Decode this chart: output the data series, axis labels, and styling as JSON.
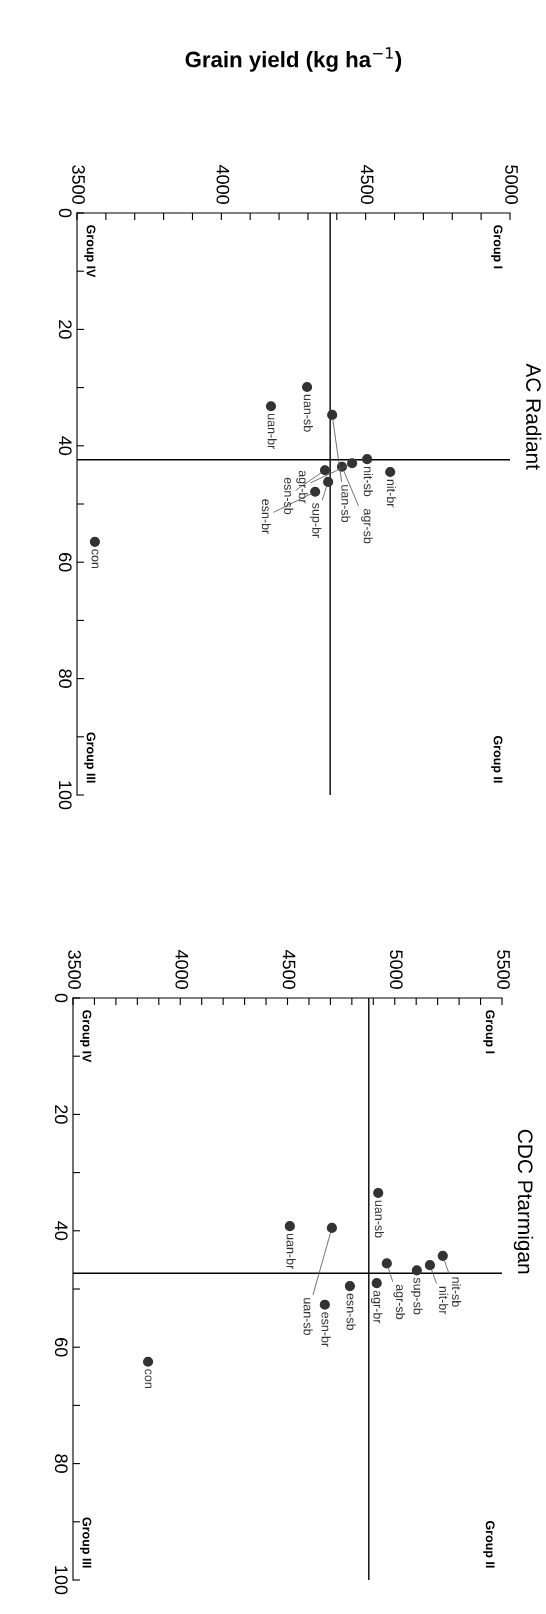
{
  "chart_data": [
    {
      "type": "scatter",
      "title": "AC Radiant",
      "xlabel": "Grain yield (kg ha$^{−1}$)",
      "marker": "circle",
      "grid": false,
      "xlim": [
        3500,
        5000
      ],
      "ylim": [
        100,
        0
      ],
      "xticks": [
        3500,
        {
          "value": 3600,
          "label": null
        },
        {
          "value": 3700,
          "label": null
        },
        {
          "value": 3800,
          "label": null
        },
        {
          "value": 3900,
          "label": null
        },
        4000,
        {
          "value": 4100,
          "label": null
        },
        {
          "value": 4200,
          "label": null
        },
        {
          "value": 4300,
          "label": null
        },
        {
          "value": 4400,
          "label": null
        },
        4500,
        {
          "value": 4600,
          "label": null
        },
        {
          "value": 4700,
          "label": null
        },
        {
          "value": 4800,
          "label": null
        },
        {
          "value": 4900,
          "label": null
        },
        5000
      ],
      "yticks": [
        0,
        {
          "value": 10,
          "label": null
        },
        20,
        {
          "value": 30,
          "label": null
        },
        40,
        {
          "value": 50,
          "label": null
        },
        60,
        {
          "value": 70,
          "label": null
        },
        80,
        {
          "value": 90,
          "label": null
        },
        100
      ],
      "series": [
        {
          "color": "#333333",
          "x": [
            4297,
            4172,
            4384,
            4585,
            4505,
            4453,
            4418,
            4359,
            4370,
            4325,
            3562
          ],
          "values": [
            29.9,
            33.2,
            34.7,
            44.5,
            42.3,
            43.0,
            43.6,
            44.2,
            46.2,
            47.9,
            56.5
          ]
        }
      ],
      "ref_lines": [
        {
          "axis": "x",
          "value": 4377,
          "color": "#000000"
        },
        {
          "axis": "y",
          "value": 42.4,
          "color": "#000000"
        }
      ],
      "annotations": [
        {
          "text": "uan-sb",
          "x": 4297,
          "y": 29.9
        },
        {
          "text": "uan-br",
          "x": 4172,
          "y": 33.2
        },
        {
          "text": "uan-sb",
          "x": 4384,
          "y": 34.7
        },
        {
          "text": "nit-br",
          "x": 4585,
          "y": 44.5
        },
        {
          "text": "nit-sb",
          "x": 4505,
          "y": 42.3
        },
        {
          "text": "agr-br",
          "x": 4453,
          "y": 43.0
        },
        {
          "text": "agr-sb",
          "x": 4418,
          "y": 43.6
        },
        {
          "text": "esn-sb",
          "x": 4359,
          "y": 44.2
        },
        {
          "text": "sup-br",
          "x": 4370,
          "y": 46.2
        },
        {
          "text": "esn-br",
          "x": 4325,
          "y": 47.9
        },
        {
          "text": "con",
          "x": 3562,
          "y": 56.5
        },
        "Group I",
        "Group II",
        "Group III",
        "Group IV"
      ]
    },
    {
      "type": "scatter",
      "title": "CDC Ptarmigan",
      "marker": "circle",
      "grid": false,
      "xlim": [
        3500,
        5500
      ],
      "ylim": [
        100,
        0
      ],
      "xticks": [
        3500,
        {
          "value": 3600,
          "label": null
        },
        {
          "value": 3700,
          "label": null
        },
        {
          "value": 3800,
          "label": null
        },
        {
          "value": 3900,
          "label": null
        },
        4000,
        {
          "value": 4100,
          "label": null
        },
        {
          "value": 4200,
          "label": null
        },
        {
          "value": 4300,
          "label": null
        },
        {
          "value": 4400,
          "label": null
        },
        4500,
        {
          "value": 4600,
          "label": null
        },
        {
          "value": 4700,
          "label": null
        },
        {
          "value": 4800,
          "label": null
        },
        {
          "value": 4900,
          "label": null
        },
        5000,
        {
          "value": 5100,
          "label": null
        },
        {
          "value": 5200,
          "label": null
        },
        {
          "value": 5300,
          "label": null
        },
        {
          "value": 5400,
          "label": null
        },
        5500
      ],
      "yticks": [
        0,
        {
          "value": 10,
          "label": null
        },
        20,
        {
          "value": 30,
          "label": null
        },
        40,
        {
          "value": 50,
          "label": null
        },
        60,
        {
          "value": 70,
          "label": null
        },
        80,
        {
          "value": 90,
          "label": null
        },
        100
      ],
      "series": [
        {
          "color": "#333333",
          "x": [
            4923,
            5224,
            5164,
            5103,
            4963,
            4916,
            4791,
            4707,
            4674,
            4511,
            3850
          ],
          "values": [
            33.5,
            44.3,
            45.9,
            46.8,
            45.6,
            49.0,
            49.5,
            39.5,
            52.7,
            39.2,
            62.5
          ]
        }
      ],
      "ref_lines": [
        {
          "axis": "x",
          "value": 4879,
          "color": "#000000"
        },
        {
          "axis": "y",
          "value": 47.3,
          "color": "#000000"
        }
      ],
      "annotations": [
        {
          "text": "uan-sb",
          "x": 4923,
          "y": 33.5
        },
        {
          "text": "nit-sb",
          "x": 5224,
          "y": 44.3
        },
        {
          "text": "nit-br",
          "x": 5164,
          "y": 45.9
        },
        {
          "text": "sup-sb",
          "x": 5103,
          "y": 46.8
        },
        {
          "text": "agr-sb",
          "x": 4963,
          "y": 45.6
        },
        {
          "text": "agr-br",
          "x": 4916,
          "y": 49.0
        },
        {
          "text": "esn-sb",
          "x": 4791,
          "y": 49.5
        },
        {
          "text": "uan-sb",
          "x": 4707,
          "y": 39.5
        },
        {
          "text": "esn-br",
          "x": 4674,
          "y": 52.7
        },
        {
          "text": "uan-br",
          "x": 4511,
          "y": 39.2
        },
        {
          "text": "con",
          "x": 3850,
          "y": 62.5
        },
        "Group I",
        "Group II",
        "Group III",
        "Group IV"
      ]
    }
  ]
}
